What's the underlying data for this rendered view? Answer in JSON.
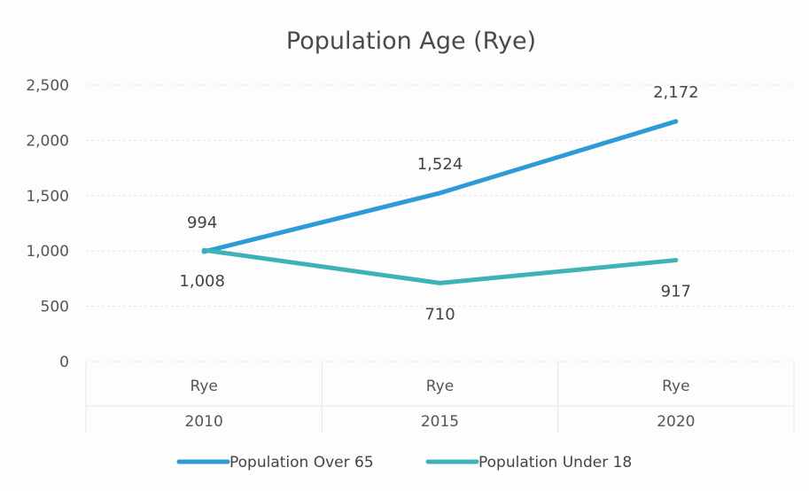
{
  "chart_data": {
    "type": "line",
    "title": "Population Age (Rye)",
    "categories": [
      {
        "place": "Rye",
        "year": "2010"
      },
      {
        "place": "Rye",
        "year": "2015"
      },
      {
        "place": "Rye",
        "year": "2020"
      }
    ],
    "ylim": [
      0,
      2500
    ],
    "yticks": [
      "0",
      "500",
      "1,000",
      "1,500",
      "2,000",
      "2,500"
    ],
    "ytick_values": [
      0,
      500,
      1000,
      1500,
      2000,
      2500
    ],
    "grid": true,
    "legend_position": "bottom",
    "series": [
      {
        "name": "Population Over 65",
        "color": "#2e9bd6",
        "values": [
          994,
          1524,
          2172
        ],
        "labels": [
          "994",
          "1,524",
          "2,172"
        ]
      },
      {
        "name": "Population Under 18",
        "color": "#3fb2b8",
        "values": [
          1008,
          710,
          917
        ],
        "labels": [
          "1,008",
          "710",
          "917"
        ]
      }
    ]
  }
}
